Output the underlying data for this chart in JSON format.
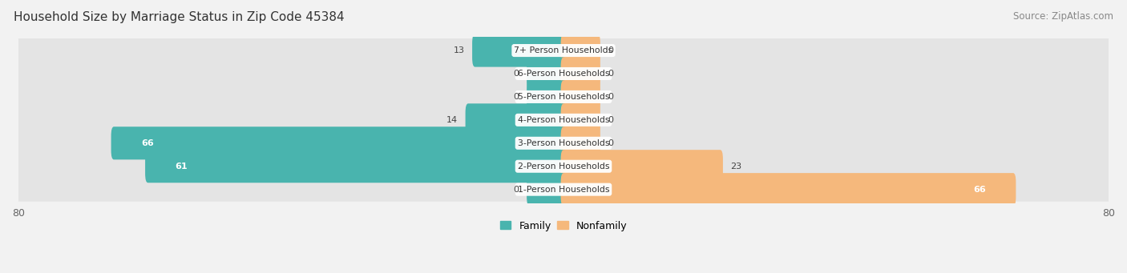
{
  "title": "Household Size by Marriage Status in Zip Code 45384",
  "source": "Source: ZipAtlas.com",
  "categories": [
    "7+ Person Households",
    "6-Person Households",
    "5-Person Households",
    "4-Person Households",
    "3-Person Households",
    "2-Person Households",
    "1-Person Households"
  ],
  "family_values": [
    13,
    0,
    0,
    14,
    66,
    61,
    0
  ],
  "nonfamily_values": [
    0,
    0,
    0,
    0,
    0,
    23,
    66
  ],
  "family_color": "#49b4ae",
  "nonfamily_color": "#f5b87c",
  "xlim_left": -80,
  "xlim_right": 80,
  "background_color": "#f2f2f2",
  "row_bg_color": "#e4e4e4",
  "title_fontsize": 11,
  "source_fontsize": 8.5,
  "tick_fontsize": 9,
  "legend_fontsize": 9,
  "bar_height": 0.62,
  "stub_value": 5,
  "value_threshold_inside": 25
}
